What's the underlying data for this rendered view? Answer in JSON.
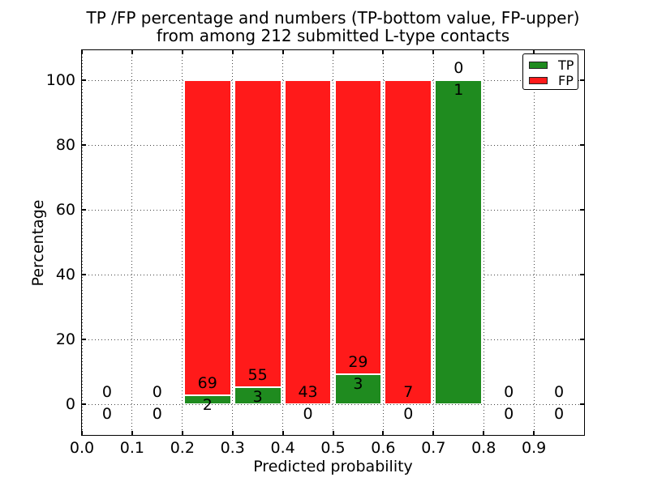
{
  "chart_data": {
    "type": "bar",
    "stacked": true,
    "normalized_to_percent": true,
    "title_lines": [
      "TP /FP percentage and numbers (TP-bottom value, FP-upper)",
      "from among 212 submitted L-type contacts"
    ],
    "xlabel": "Predicted probability",
    "ylabel": "Percentage",
    "total_submitted": 212,
    "xlim": [
      0.0,
      1.0
    ],
    "ylim": [
      -9.5,
      109.25
    ],
    "grid": {
      "style": "dotted",
      "on": true
    },
    "colors": {
      "tp": "#1f8b1f",
      "fp": "#ff1a1a",
      "bar_edge": "#ffffff"
    },
    "x_ticks": [
      {
        "value": 0.0,
        "label": "0.0"
      },
      {
        "value": 0.1,
        "label": "0.1"
      },
      {
        "value": 0.2,
        "label": "0.2"
      },
      {
        "value": 0.3,
        "label": "0.3"
      },
      {
        "value": 0.4,
        "label": "0.4"
      },
      {
        "value": 0.5,
        "label": "0.5"
      },
      {
        "value": 0.6,
        "label": "0.6"
      },
      {
        "value": 0.7,
        "label": "0.7"
      },
      {
        "value": 0.8,
        "label": "0.8"
      },
      {
        "value": 0.9,
        "label": "0.9"
      }
    ],
    "y_ticks": [
      {
        "value": 0,
        "label": "0"
      },
      {
        "value": 20,
        "label": "20"
      },
      {
        "value": 40,
        "label": "40"
      },
      {
        "value": 60,
        "label": "60"
      },
      {
        "value": 80,
        "label": "80"
      },
      {
        "value": 100,
        "label": "100"
      }
    ],
    "legend": {
      "position": "upper-right",
      "entries": [
        {
          "label": "TP",
          "color_key": "tp"
        },
        {
          "label": "FP",
          "color_key": "fp"
        }
      ]
    },
    "categories": [
      "0.0-0.1",
      "0.1-0.2",
      "0.2-0.3",
      "0.3-0.4",
      "0.4-0.5",
      "0.5-0.6",
      "0.6-0.7",
      "0.7-0.8",
      "0.8-0.9",
      "0.9-1.0"
    ],
    "bins": [
      {
        "x0": 0.0,
        "x1": 0.1,
        "tp": 0,
        "fp": 0
      },
      {
        "x0": 0.1,
        "x1": 0.2,
        "tp": 0,
        "fp": 0
      },
      {
        "x0": 0.2,
        "x1": 0.3,
        "tp": 2,
        "fp": 69
      },
      {
        "x0": 0.3,
        "x1": 0.4,
        "tp": 3,
        "fp": 55
      },
      {
        "x0": 0.4,
        "x1": 0.5,
        "tp": 0,
        "fp": 43
      },
      {
        "x0": 0.5,
        "x1": 0.6,
        "tp": 3,
        "fp": 29
      },
      {
        "x0": 0.6,
        "x1": 0.7,
        "tp": 0,
        "fp": 7
      },
      {
        "x0": 0.7,
        "x1": 0.8,
        "tp": 1,
        "fp": 0
      },
      {
        "x0": 0.8,
        "x1": 0.9,
        "tp": 0,
        "fp": 0
      },
      {
        "x0": 0.9,
        "x1": 1.0,
        "tp": 0,
        "fp": 0
      }
    ],
    "annotation_rule": "FP count above TP/FP boundary, TP count below boundary"
  }
}
